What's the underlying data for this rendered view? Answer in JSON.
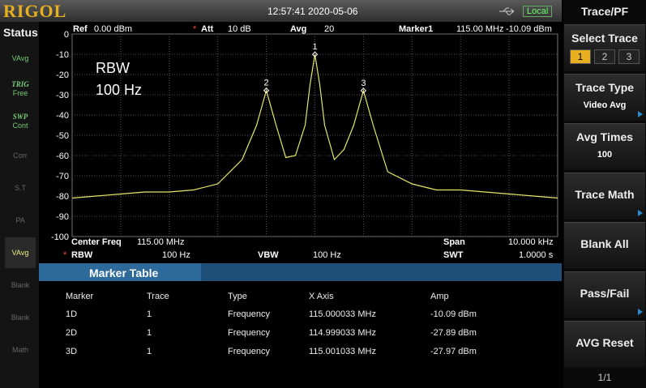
{
  "header": {
    "logo": "RIGOL",
    "datetime": "12:57:41 2020-05-06",
    "mode": "Local"
  },
  "status": {
    "title": "Status",
    "items": [
      [
        "VAvg"
      ],
      [
        "TRIG",
        "Free"
      ],
      [
        "SWP",
        "Cont"
      ],
      [
        "Corr"
      ],
      [
        "S.T"
      ],
      [
        "PA"
      ],
      [
        "VAvg"
      ],
      [
        "Blank"
      ],
      [
        "Blank"
      ],
      [
        "Math"
      ]
    ]
  },
  "settings": {
    "ref_label": "Ref",
    "ref": "0.00 dBm",
    "att_flag": "*",
    "att_label": "Att",
    "att": "10 dB",
    "avg_label": "Avg",
    "avg": "20",
    "marker_label": "Marker1",
    "marker_freq": "115.00 MHz",
    "marker_amp": "-10.09 dBm",
    "center_label": "Center Freq",
    "center": "115.00 MHz",
    "span_label": "Span",
    "span": "10.000 kHz",
    "rbw_flag": "*",
    "rbw_label": "RBW",
    "rbw": "100 Hz",
    "vbw_label": "VBW",
    "vbw": "100 Hz",
    "swt_label": "SWT",
    "swt": "1.0000 s"
  },
  "chart_data": {
    "type": "line",
    "annotation": [
      "RBW",
      "100 Hz"
    ],
    "x": [
      114.995,
      114.9955,
      114.996,
      114.9965,
      114.997,
      114.9975,
      114.998,
      114.9985,
      114.9988,
      114.999,
      114.9992,
      114.9994,
      114.9996,
      114.9998,
      114.9999,
      115.0,
      115.0001,
      115.0002,
      115.0004,
      115.0006,
      115.0008,
      115.001,
      115.0012,
      115.0015,
      115.002,
      115.0025,
      115.003,
      115.0035,
      115.004,
      115.0045,
      115.005
    ],
    "series": [
      {
        "color": "#e6e66a",
        "values": [
          -81,
          -80,
          -79,
          -78,
          -78,
          -77,
          -74,
          -62,
          -45,
          -27.89,
          -45,
          -61,
          -60,
          -45,
          -25,
          -10.09,
          -25,
          -45,
          -62,
          -57,
          -45,
          -27.97,
          -45,
          -68,
          -74,
          -77,
          -77,
          -78,
          -79,
          -80,
          -81
        ]
      }
    ],
    "markers": [
      {
        "label": "1",
        "x": 115.0,
        "y": -10.09
      },
      {
        "label": "2",
        "x": 114.999,
        "y": -27.89
      },
      {
        "label": "3",
        "x": 115.001,
        "y": -27.97
      }
    ],
    "xlim": [
      114.995,
      115.005
    ],
    "ylim": [
      -100,
      0
    ],
    "yticks": [
      0,
      -10,
      -20,
      -30,
      -40,
      -50,
      -60,
      -70,
      -80,
      -90,
      -100
    ],
    "grid": true
  },
  "marker_table": {
    "title": "Marker Table",
    "columns": [
      "Marker",
      "Trace",
      "Type",
      "X Axis",
      "Amp"
    ],
    "rows": [
      [
        "1D",
        "1",
        "Frequency",
        "115.000033 MHz",
        "-10.09 dBm"
      ],
      [
        "2D",
        "1",
        "Frequency",
        "114.999033 MHz",
        "-27.89 dBm"
      ],
      [
        "3D",
        "1",
        "Frequency",
        "115.001033 MHz",
        "-27.97 dBm"
      ]
    ]
  },
  "menu": {
    "title": "Trace/PF",
    "select_trace": "Select Trace",
    "traces": [
      "1",
      "2",
      "3"
    ],
    "buttons": [
      {
        "label": "Trace Type",
        "value": "Video Avg"
      },
      {
        "label": "Avg Times",
        "value": "100"
      },
      {
        "label": "Trace Math"
      },
      {
        "label": "Blank All"
      },
      {
        "label": "Pass/Fail"
      },
      {
        "label": "AVG Reset"
      }
    ],
    "page": "1/1"
  }
}
